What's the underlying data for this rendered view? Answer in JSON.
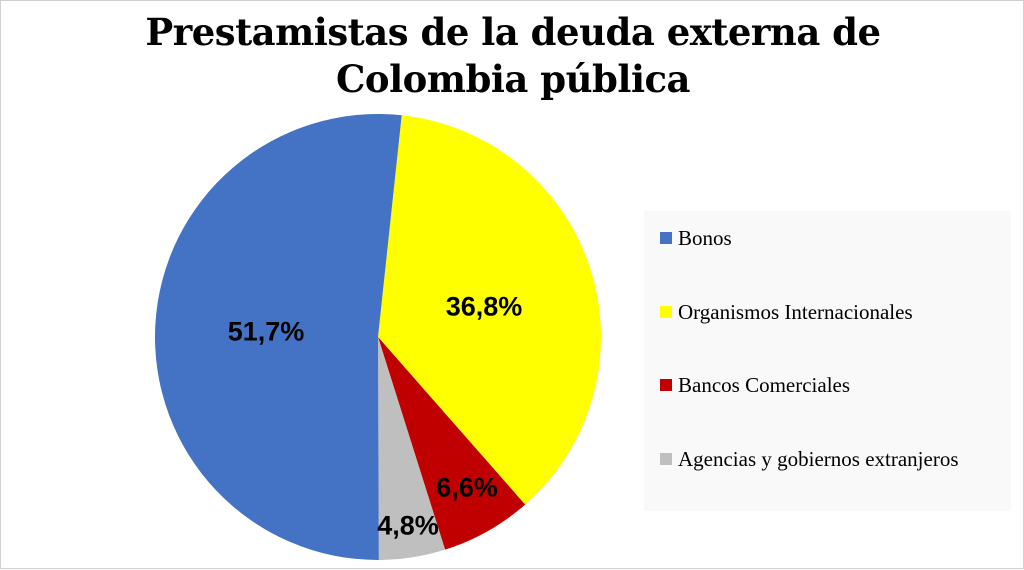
{
  "chart_data": {
    "type": "pie",
    "title": "Prestamistas de la deuda externa de Colombia pública",
    "categories": [
      "Bonos",
      "Organismos Internacionales",
      "Bancos Comerciales",
      "Agencias y gobiernos extranjeros"
    ],
    "values": [
      51.7,
      36.8,
      6.6,
      4.8
    ],
    "labels": [
      "51,7%",
      "36,8%",
      "6,6%",
      "4,8%"
    ],
    "colors": [
      "#4472c4",
      "#ffff00",
      "#c00000",
      "#bfbfbf"
    ],
    "legend_position": "right",
    "start_angle_deg": 6.1,
    "direction": "clockwise",
    "slice_order_from_top": [
      "Organismos Internacionales",
      "Bancos Comerciales",
      "Agencias y gobiernos extranjeros",
      "Bonos"
    ]
  },
  "title": {
    "line1": "Prestamistas de la deuda externa de",
    "line2": "Colombia pública"
  },
  "slices": {
    "bonos": {
      "label": "51,7%"
    },
    "organismos": {
      "label": "36,8%"
    },
    "bancos": {
      "label": "6,6%"
    },
    "agencias": {
      "label": "4,8%"
    }
  },
  "legend": {
    "items": [
      {
        "label": "Bonos",
        "color": "#4472c4"
      },
      {
        "label": "Organismos Internacionales",
        "color": "#ffff00"
      },
      {
        "label": "Bancos Comerciales",
        "color": "#c00000"
      },
      {
        "label": "Agencias y gobiernos extranjeros",
        "color": "#bfbfbf"
      }
    ]
  }
}
